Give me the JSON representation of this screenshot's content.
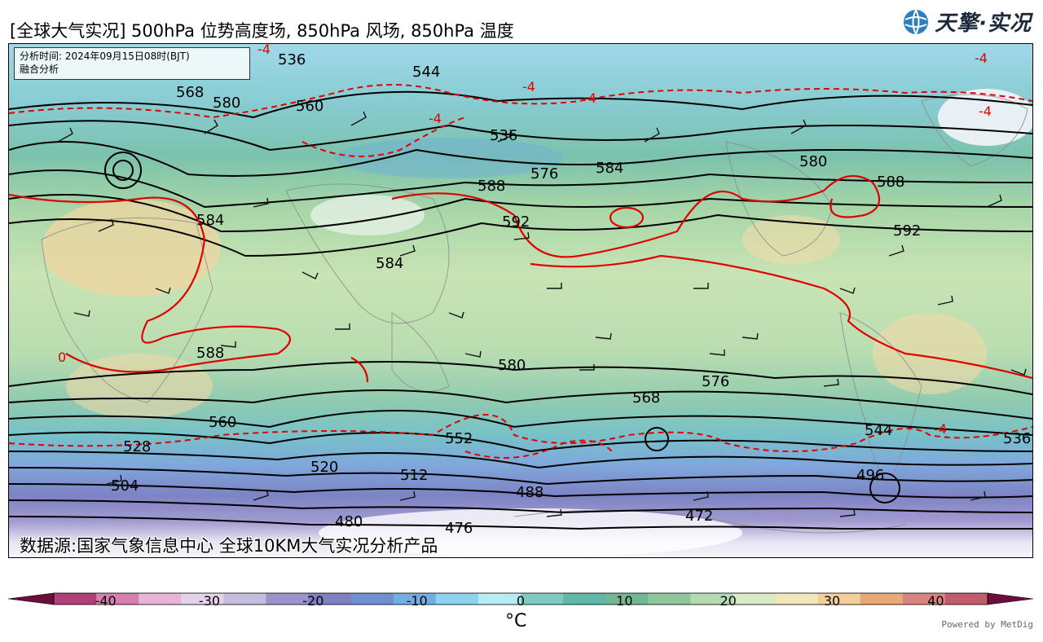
{
  "title": "[全球大气实况] 500hPa 位势高度场, 850hPa 风场, 850hPa 温度",
  "logo": {
    "text": "天擎·实况",
    "icon": "globe-icon"
  },
  "info_box": {
    "line1": "分析时间: 2024年09月15日08时(BJT)",
    "line2": "融合分析"
  },
  "source_note": "数据源:国家气象信息中心 全球10KM大气实况分析产品",
  "contour_labels": [
    "536",
    "544",
    "568",
    "580",
    "560",
    "536",
    "576",
    "584",
    "588",
    "592",
    "580",
    "584",
    "588",
    "592",
    "584",
    "588",
    "580",
    "576",
    "568",
    "560",
    "552",
    "544",
    "536",
    "528",
    "520",
    "512",
    "504",
    "496",
    "488",
    "480",
    "476",
    "472"
  ],
  "temp_labels": [
    "-4",
    "-4",
    "-4",
    "-4",
    "-4",
    "-4",
    "-4",
    "0"
  ],
  "colorbar": {
    "unit": "°C",
    "ticks": [
      "-40",
      "-30",
      "-20",
      "-10",
      "0",
      "10",
      "20",
      "30",
      "40"
    ],
    "colors": [
      "#6b0f3a",
      "#b0407a",
      "#d57fb0",
      "#e9b3d6",
      "#e4d2ea",
      "#c4bde0",
      "#9d93cc",
      "#7f7fc1",
      "#6f8fd0",
      "#72aee3",
      "#8fd3f0",
      "#b8ecf4",
      "#7fcbc2",
      "#5fb8a8",
      "#72b894",
      "#8fc79c",
      "#b3dab0",
      "#d8ebc6",
      "#f1e7b8",
      "#f4cf97",
      "#e9a878",
      "#d9837f",
      "#c35b6e",
      "#6b0f3a"
    ],
    "min": -45,
    "max": 45
  },
  "powered_by": "Powered by MetDig",
  "colors": {
    "contour": "#000000",
    "temp_line": "#e00000",
    "border": "#888888"
  }
}
